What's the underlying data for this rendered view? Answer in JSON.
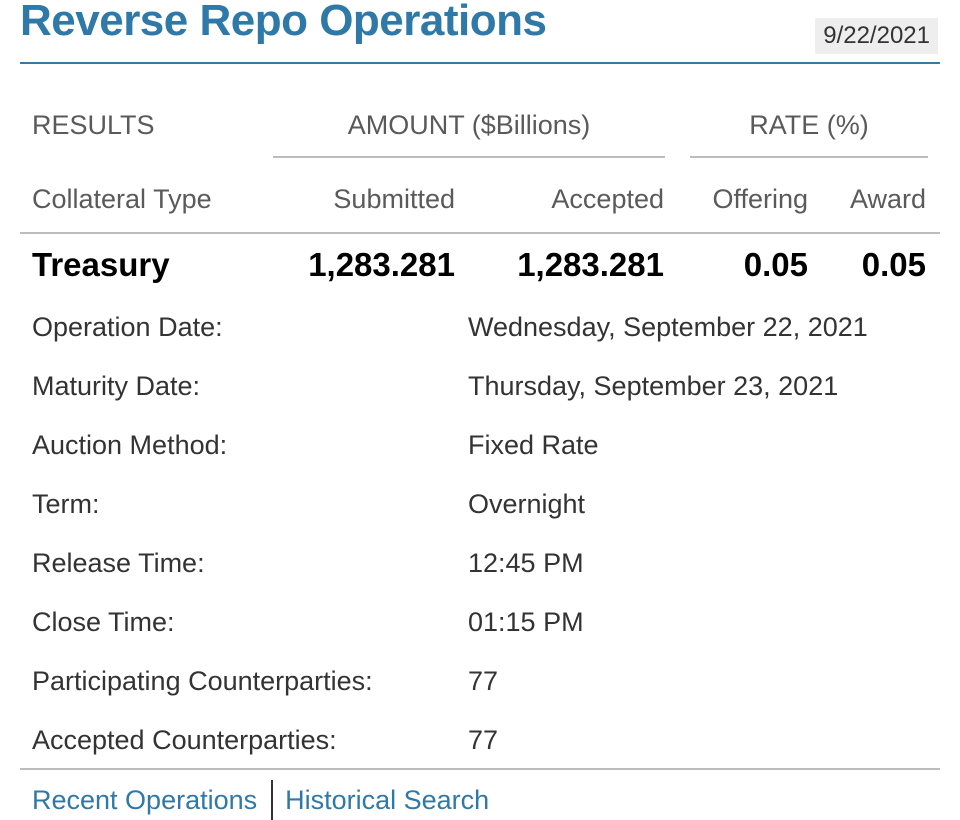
{
  "header": {
    "title": "Reverse Repo Operations",
    "date": "9/22/2021"
  },
  "table": {
    "results_label": "RESULTS",
    "amount_group": "AMOUNT ($Billions)",
    "rate_group": "RATE (%)",
    "columns": {
      "collateral_type": "Collateral Type",
      "submitted": "Submitted",
      "accepted": "Accepted",
      "offering": "Offering",
      "award": "Award"
    },
    "rows": [
      {
        "collateral_type": "Treasury",
        "submitted": "1,283.281",
        "accepted": "1,283.281",
        "offering": "0.05",
        "award": "0.05"
      }
    ]
  },
  "details": [
    {
      "label": "Operation Date:",
      "value": "Wednesday, September 22, 2021"
    },
    {
      "label": "Maturity Date:",
      "value": "Thursday, September 23, 2021"
    },
    {
      "label": "Auction Method:",
      "value": "Fixed Rate"
    },
    {
      "label": "Term:",
      "value": "Overnight"
    },
    {
      "label": "Release Time:",
      "value": "12:45 PM"
    },
    {
      "label": "Close Time:",
      "value": "01:15 PM"
    },
    {
      "label": "Participating Counterparties:",
      "value": "77"
    },
    {
      "label": "Accepted Counterparties:",
      "value": "77"
    }
  ],
  "footer": {
    "recent_operations": "Recent Operations",
    "historical_search": "Historical Search"
  },
  "colors": {
    "accent": "#2f79a8",
    "rule": "#bcbcbc",
    "header_rule": "#3a7aa0"
  }
}
